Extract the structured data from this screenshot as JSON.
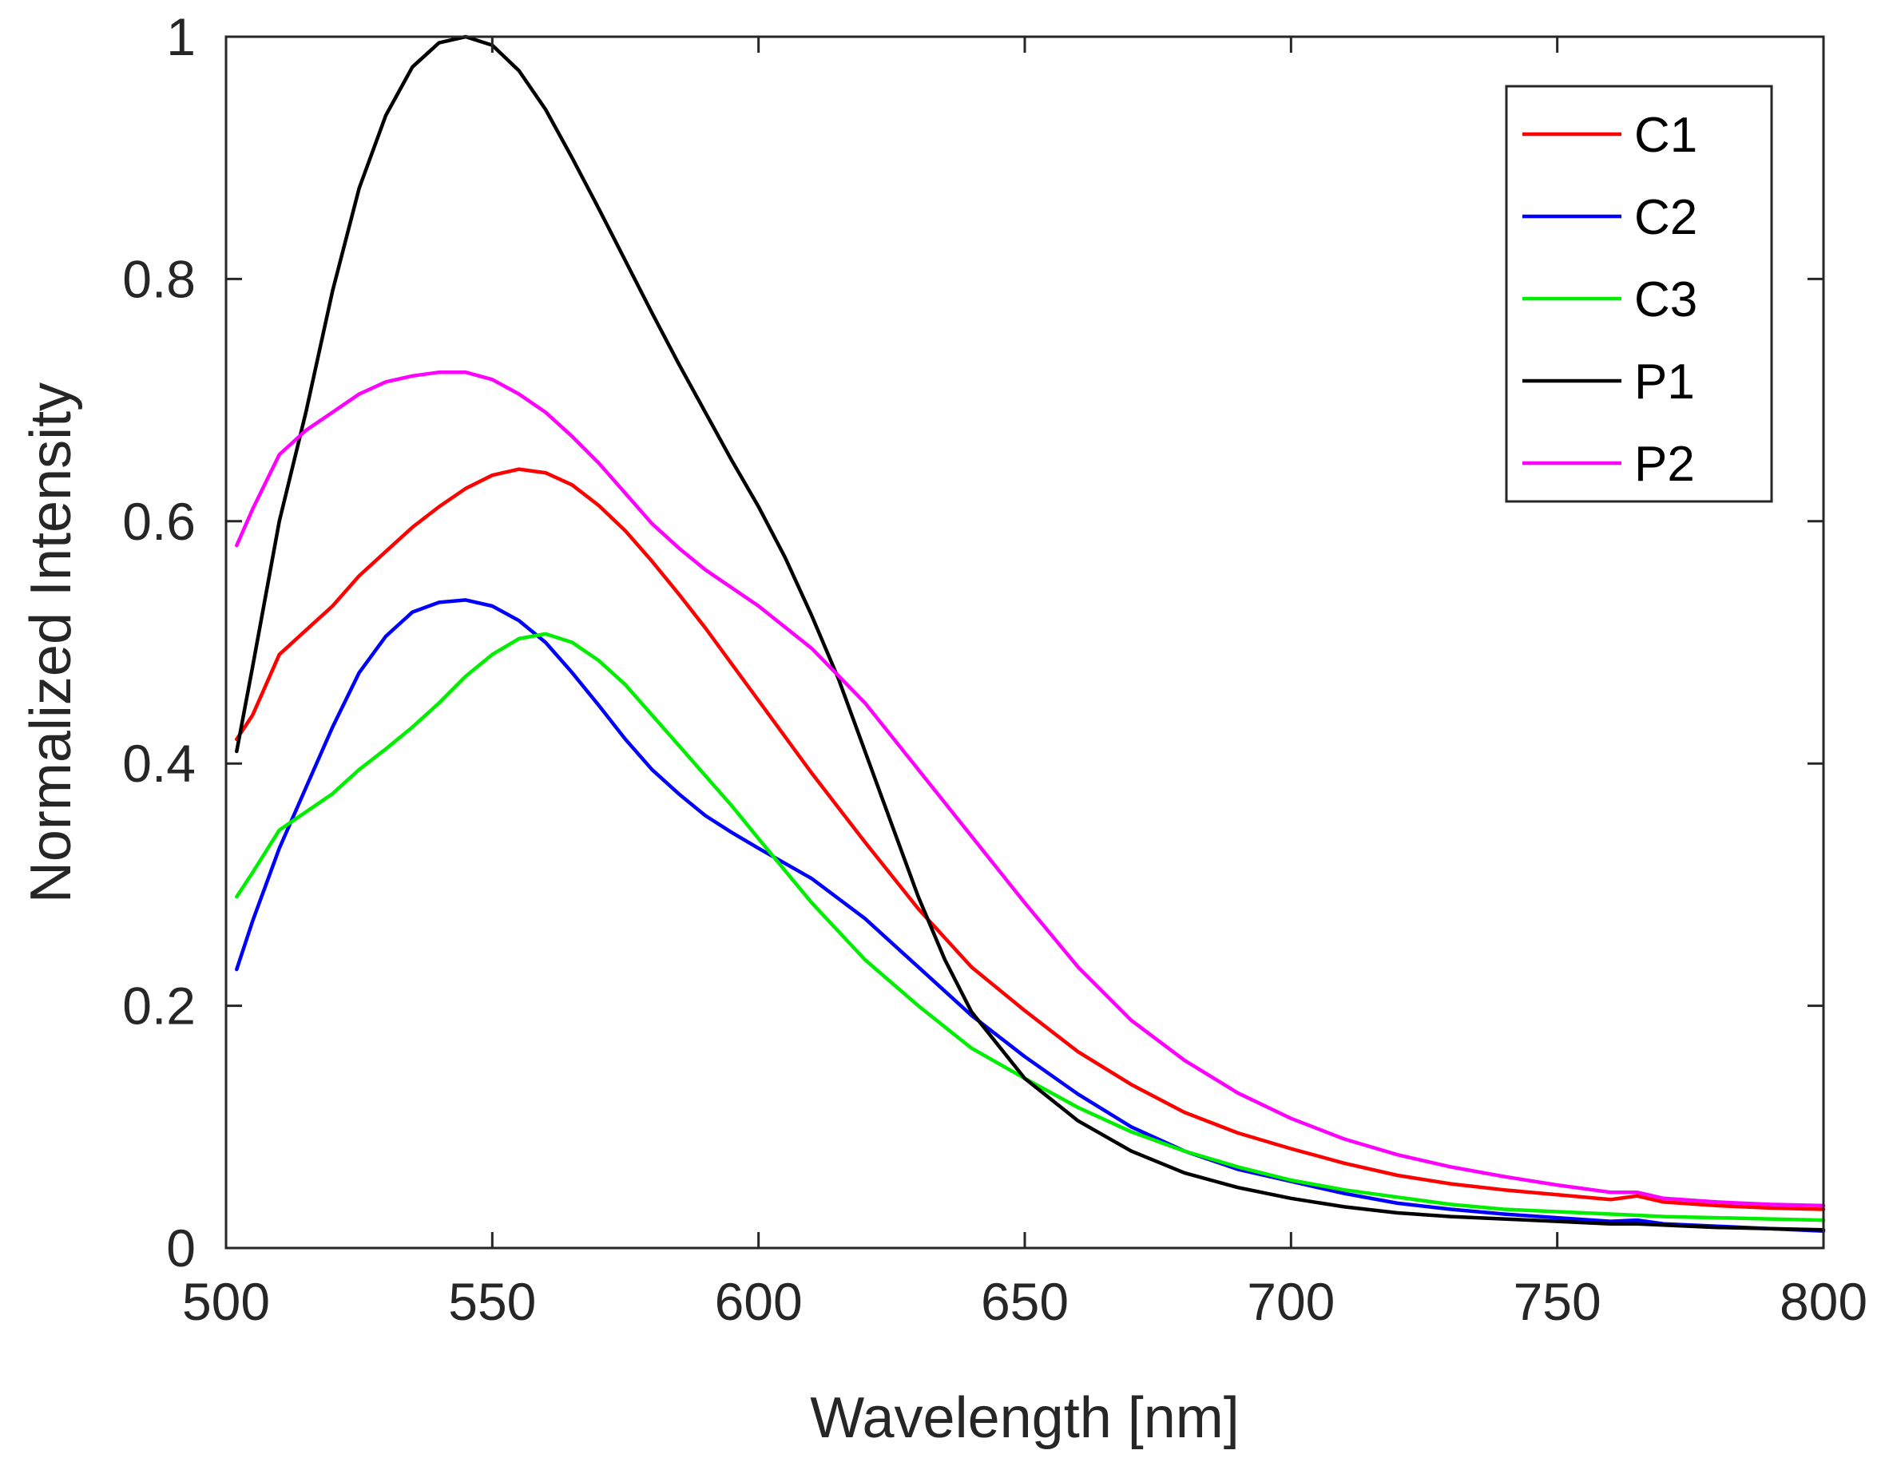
{
  "chart_data": {
    "type": "line",
    "xlabel": "Wavelength [nm]",
    "ylabel": "Normalized Intensity",
    "xlim": [
      500,
      800
    ],
    "ylim": [
      0,
      1
    ],
    "grid": false,
    "legend_position": "top-right",
    "xticks": [
      500,
      550,
      600,
      650,
      700,
      750,
      800
    ],
    "yticks": [
      0,
      0.2,
      0.4,
      0.6,
      0.8,
      1
    ],
    "xtick_labels": [
      "500",
      "550",
      "600",
      "650",
      "700",
      "750",
      "800"
    ],
    "ytick_labels": [
      "0",
      "0.2",
      "0.4",
      "0.6",
      "0.8",
      "1"
    ],
    "series": [
      {
        "name": "C1",
        "color": "#ff0000",
        "x": [
          502,
          505,
          510,
          515,
          520,
          525,
          530,
          535,
          540,
          545,
          550,
          555,
          560,
          565,
          570,
          575,
          580,
          585,
          590,
          595,
          600,
          610,
          620,
          630,
          640,
          650,
          660,
          670,
          680,
          690,
          700,
          710,
          720,
          730,
          740,
          750,
          760,
          765,
          770,
          780,
          790,
          800
        ],
        "y": [
          0.42,
          0.44,
          0.49,
          0.51,
          0.53,
          0.555,
          0.575,
          0.595,
          0.612,
          0.627,
          0.638,
          0.643,
          0.64,
          0.63,
          0.613,
          0.592,
          0.567,
          0.54,
          0.512,
          0.482,
          0.452,
          0.392,
          0.335,
          0.28,
          0.232,
          0.196,
          0.162,
          0.135,
          0.112,
          0.095,
          0.082,
          0.07,
          0.06,
          0.053,
          0.048,
          0.044,
          0.04,
          0.043,
          0.038,
          0.035,
          0.033,
          0.032
        ]
      },
      {
        "name": "C2",
        "color": "#0000ff",
        "x": [
          502,
          505,
          510,
          515,
          520,
          525,
          530,
          535,
          540,
          545,
          550,
          555,
          560,
          565,
          570,
          575,
          580,
          585,
          590,
          595,
          600,
          610,
          620,
          630,
          640,
          650,
          660,
          670,
          680,
          690,
          700,
          710,
          720,
          730,
          740,
          750,
          760,
          765,
          770,
          780,
          790,
          800
        ],
        "y": [
          0.23,
          0.27,
          0.33,
          0.38,
          0.43,
          0.475,
          0.505,
          0.525,
          0.533,
          0.535,
          0.53,
          0.518,
          0.5,
          0.475,
          0.448,
          0.42,
          0.395,
          0.375,
          0.357,
          0.343,
          0.33,
          0.305,
          0.272,
          0.232,
          0.192,
          0.158,
          0.127,
          0.1,
          0.08,
          0.065,
          0.055,
          0.045,
          0.037,
          0.032,
          0.028,
          0.025,
          0.022,
          0.023,
          0.02,
          0.018,
          0.016,
          0.014
        ]
      },
      {
        "name": "C3",
        "color": "#00ee00",
        "x": [
          502,
          505,
          510,
          515,
          520,
          525,
          530,
          535,
          540,
          545,
          550,
          555,
          560,
          565,
          570,
          575,
          580,
          585,
          590,
          595,
          600,
          610,
          620,
          630,
          640,
          650,
          660,
          670,
          680,
          690,
          700,
          710,
          720,
          730,
          740,
          750,
          760,
          765,
          770,
          780,
          790,
          800
        ],
        "y": [
          0.29,
          0.31,
          0.345,
          0.36,
          0.375,
          0.395,
          0.412,
          0.43,
          0.45,
          0.472,
          0.49,
          0.503,
          0.507,
          0.5,
          0.485,
          0.465,
          0.44,
          0.415,
          0.39,
          0.365,
          0.338,
          0.285,
          0.238,
          0.2,
          0.165,
          0.14,
          0.116,
          0.096,
          0.08,
          0.067,
          0.056,
          0.048,
          0.042,
          0.036,
          0.032,
          0.03,
          0.028,
          0.027,
          0.026,
          0.025,
          0.024,
          0.023
        ]
      },
      {
        "name": "P1",
        "color": "#000000",
        "x": [
          502,
          505,
          510,
          515,
          520,
          525,
          530,
          535,
          540,
          545,
          550,
          555,
          560,
          565,
          570,
          575,
          580,
          585,
          590,
          595,
          600,
          605,
          610,
          615,
          620,
          625,
          630,
          635,
          640,
          650,
          660,
          670,
          680,
          690,
          700,
          710,
          720,
          730,
          740,
          750,
          760,
          765,
          770,
          780,
          790,
          800
        ],
        "y": [
          0.41,
          0.48,
          0.6,
          0.69,
          0.79,
          0.875,
          0.935,
          0.975,
          0.995,
          1.0,
          0.993,
          0.972,
          0.94,
          0.9,
          0.858,
          0.815,
          0.772,
          0.73,
          0.69,
          0.65,
          0.612,
          0.57,
          0.522,
          0.47,
          0.41,
          0.35,
          0.29,
          0.238,
          0.195,
          0.14,
          0.105,
          0.08,
          0.062,
          0.05,
          0.041,
          0.034,
          0.029,
          0.026,
          0.024,
          0.022,
          0.02,
          0.02,
          0.019,
          0.017,
          0.016,
          0.015
        ]
      },
      {
        "name": "P2",
        "color": "#ff00ff",
        "x": [
          502,
          505,
          510,
          515,
          520,
          525,
          530,
          535,
          540,
          545,
          550,
          555,
          560,
          565,
          570,
          575,
          580,
          585,
          590,
          595,
          600,
          610,
          620,
          630,
          640,
          650,
          660,
          670,
          680,
          690,
          700,
          710,
          720,
          730,
          740,
          750,
          760,
          765,
          770,
          780,
          790,
          800
        ],
        "y": [
          0.58,
          0.61,
          0.655,
          0.675,
          0.69,
          0.705,
          0.715,
          0.72,
          0.723,
          0.723,
          0.717,
          0.705,
          0.69,
          0.67,
          0.648,
          0.623,
          0.598,
          0.578,
          0.56,
          0.545,
          0.53,
          0.495,
          0.45,
          0.395,
          0.34,
          0.285,
          0.232,
          0.188,
          0.155,
          0.128,
          0.107,
          0.09,
          0.077,
          0.067,
          0.059,
          0.052,
          0.046,
          0.046,
          0.041,
          0.038,
          0.036,
          0.035
        ]
      }
    ]
  }
}
